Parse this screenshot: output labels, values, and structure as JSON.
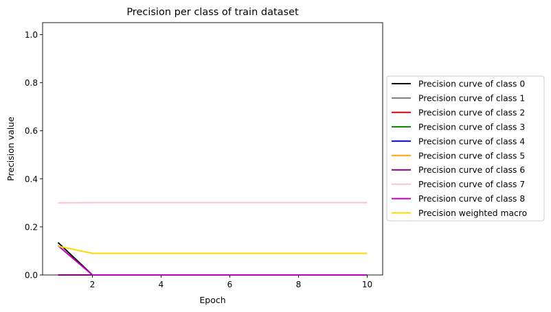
{
  "chart_data": {
    "type": "line",
    "title": "Precision per class of train dataset",
    "xlabel": "Epoch",
    "ylabel": "Precision value",
    "xlim": [
      0.55,
      10.45
    ],
    "ylim": [
      0,
      1.05
    ],
    "xticks": [
      2,
      4,
      6,
      8,
      10
    ],
    "yticks": [
      0.0,
      0.2,
      0.4,
      0.6,
      0.8,
      1.0
    ],
    "xtick_labels": [
      "2",
      "4",
      "6",
      "8",
      "10"
    ],
    "ytick_labels": [
      "0.0",
      "0.2",
      "0.4",
      "0.6",
      "0.8",
      "1.0"
    ],
    "grid": false,
    "legend_position": "right-outside",
    "x": [
      1,
      2,
      3,
      4,
      5,
      6,
      7,
      8,
      9,
      10
    ],
    "series": [
      {
        "name": "Precision curve of class 0",
        "color": "#000000",
        "values": [
          0.135,
          0,
          0,
          0,
          0,
          0,
          0,
          0,
          0,
          0
        ]
      },
      {
        "name": "Precision curve of class 1",
        "color": "#808080",
        "values": [
          0,
          0,
          0,
          0,
          0,
          0,
          0,
          0,
          0,
          0
        ]
      },
      {
        "name": "Precision curve of class 2",
        "color": "#ff0000",
        "values": [
          0,
          0,
          0,
          0,
          0,
          0,
          0,
          0,
          0,
          0
        ]
      },
      {
        "name": "Precision curve of class 3",
        "color": "#008000",
        "values": [
          0,
          0,
          0,
          0,
          0,
          0,
          0,
          0,
          0,
          0
        ]
      },
      {
        "name": "Precision curve of class 4",
        "color": "#0000ff",
        "values": [
          0,
          0,
          0,
          0,
          0,
          0,
          0,
          0,
          0,
          0
        ]
      },
      {
        "name": "Precision curve of class 5",
        "color": "#ffa500",
        "values": [
          0,
          0,
          0,
          0,
          0,
          0,
          0,
          0,
          0,
          0
        ]
      },
      {
        "name": "Precision curve of class 6",
        "color": "#800080",
        "values": [
          0,
          0,
          0,
          0,
          0,
          0,
          0,
          0,
          0,
          0
        ]
      },
      {
        "name": "Precision curve of class 7",
        "color": "#ffc0cb",
        "values": [
          0.3,
          0.301,
          0.301,
          0.301,
          0.301,
          0.301,
          0.301,
          0.301,
          0.301,
          0.301
        ]
      },
      {
        "name": "Precision curve of class 8",
        "color": "#c000c0",
        "values": [
          0.122,
          0,
          0,
          0,
          0,
          0,
          0,
          0,
          0,
          0
        ]
      },
      {
        "name": "Precision weighted macro",
        "color": "#ffd700",
        "values": [
          0.12,
          0.09,
          0.09,
          0.09,
          0.09,
          0.09,
          0.09,
          0.09,
          0.09,
          0.09
        ]
      }
    ]
  }
}
